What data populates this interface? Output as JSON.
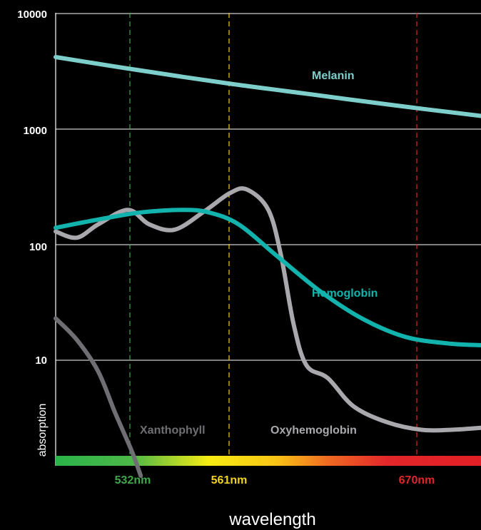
{
  "chart_data": {
    "type": "line",
    "y_scale": "log",
    "ylim": [
      1,
      10000
    ],
    "y_ticks": [
      "10000",
      "1000",
      "100",
      "10"
    ],
    "xlabel": "wavelength",
    "ylabel": "absorption",
    "grid": true,
    "wavelength_markers": [
      {
        "label": "532nm",
        "color": "#3ea84a"
      },
      {
        "label": "561nm",
        "color": "#f2d21b"
      },
      {
        "label": "670nm",
        "color": "#e0262b"
      }
    ],
    "series": [
      {
        "name": "Melanin",
        "color": "#7ecfcc",
        "points": [
          [
            0,
            4200
          ],
          [
            0.18,
            3300
          ],
          [
            0.4,
            2500
          ],
          [
            0.6,
            2000
          ],
          [
            0.8,
            1600
          ],
          [
            1.0,
            1300
          ]
        ]
      },
      {
        "name": "Hemoglobin",
        "color": "#12b3ac",
        "points": [
          [
            0,
            140
          ],
          [
            0.1,
            165
          ],
          [
            0.2,
            190
          ],
          [
            0.3,
            200
          ],
          [
            0.36,
            190
          ],
          [
            0.43,
            150
          ],
          [
            0.52,
            80
          ],
          [
            0.62,
            40
          ],
          [
            0.72,
            23
          ],
          [
            0.82,
            16
          ],
          [
            0.92,
            14
          ],
          [
            1.0,
            13.5
          ]
        ]
      },
      {
        "name": "Oxyhemoglobin",
        "color": "#a9a9ad",
        "points": [
          [
            0,
            130
          ],
          [
            0.05,
            115
          ],
          [
            0.1,
            150
          ],
          [
            0.17,
            200
          ],
          [
            0.22,
            150
          ],
          [
            0.28,
            135
          ],
          [
            0.35,
            195
          ],
          [
            0.41,
            280
          ],
          [
            0.45,
            300
          ],
          [
            0.5,
            200
          ],
          [
            0.53,
            80
          ],
          [
            0.56,
            20
          ],
          [
            0.59,
            9
          ],
          [
            0.64,
            7
          ],
          [
            0.7,
            4
          ],
          [
            0.78,
            2.9
          ],
          [
            0.86,
            2.5
          ],
          [
            0.93,
            2.5
          ],
          [
            1.0,
            2.6
          ]
        ]
      },
      {
        "name": "Xanthophyll",
        "color": "#6f6f73",
        "points": [
          [
            0,
            23
          ],
          [
            0.05,
            15
          ],
          [
            0.1,
            8
          ],
          [
            0.14,
            3.5
          ],
          [
            0.18,
            1.6
          ],
          [
            0.2,
            1.0
          ]
        ]
      }
    ]
  }
}
